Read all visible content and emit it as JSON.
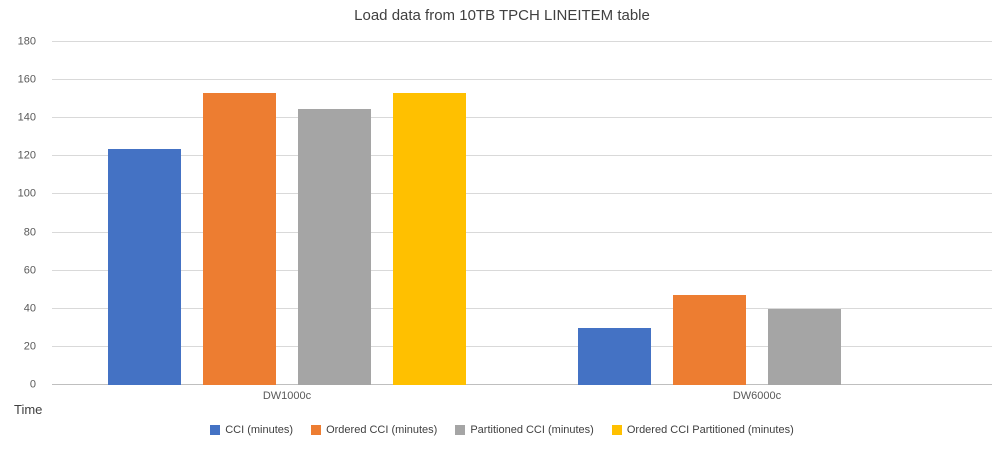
{
  "chart_data": {
    "type": "bar",
    "title": "Load data from 10TB TPCH LINEITEM table",
    "categories": [
      "DW1000c",
      "DW6000c"
    ],
    "series": [
      {
        "name": "CCI (minutes)",
        "color": "#4472C4",
        "values": [
          124,
          30
        ]
      },
      {
        "name": "Ordered CCI (minutes)",
        "color": "#ED7D31",
        "values": [
          153,
          47
        ]
      },
      {
        "name": "Partitioned CCI (minutes)",
        "color": "#A5A5A5",
        "values": [
          145,
          40
        ]
      },
      {
        "name": "Ordered CCI Partitioned (minutes)",
        "color": "#FFC000",
        "values": [
          153,
          null
        ]
      }
    ],
    "xlabel": "Time",
    "ylabel": "",
    "ylim": [
      0,
      180
    ],
    "yticks": [
      0,
      20,
      40,
      60,
      80,
      100,
      120,
      140,
      160,
      180
    ],
    "grid": true,
    "legend_position": "bottom",
    "colors": {
      "background": "#ffffff",
      "gridline": "#d9d9d9",
      "axis_line": "#bfbfbf",
      "tick_text": "#595959",
      "title_text": "#404040"
    }
  }
}
